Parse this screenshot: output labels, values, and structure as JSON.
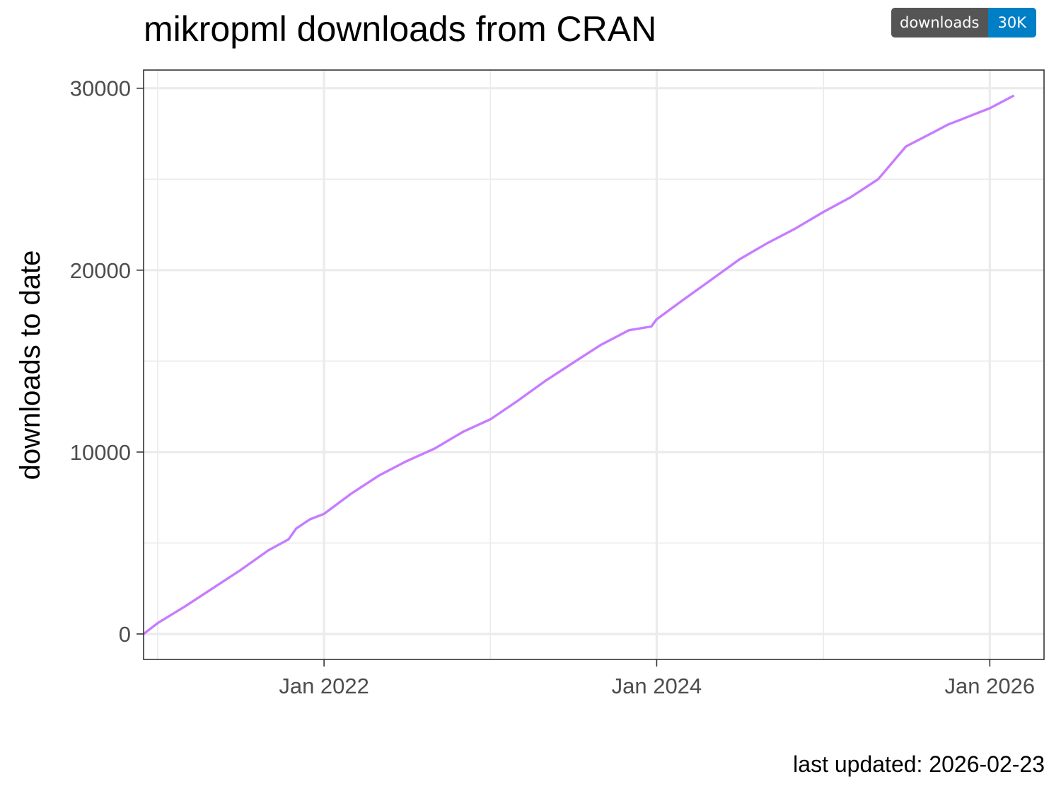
{
  "header": {
    "title": "mikropml downloads from CRAN",
    "badge": {
      "label": "downloads",
      "value": "30K",
      "label_color": "#555555",
      "value_color": "#007ec6"
    }
  },
  "footer": {
    "text": "last updated: 2026-02-23"
  },
  "chart_data": {
    "type": "line",
    "title": "mikropml downloads from CRAN",
    "xlabel": "",
    "ylabel": "downloads to date",
    "x_type": "date",
    "xlim": [
      "2020-12-01",
      "2026-04-30"
    ],
    "ylim": [
      -1400,
      31000
    ],
    "x_ticks": [
      {
        "date": "2022-01-01",
        "label": "Jan 2022"
      },
      {
        "date": "2024-01-01",
        "label": "Jan 2024"
      },
      {
        "date": "2026-01-01",
        "label": "Jan 2026"
      }
    ],
    "x_minor_ticks": [
      "2021-01-01",
      "2023-01-01",
      "2025-01-01"
    ],
    "y_ticks": [
      0,
      10000,
      20000,
      30000
    ],
    "y_minor_ticks": [
      5000,
      15000,
      25000
    ],
    "grid": true,
    "line_color": "#c77cff",
    "series": [
      {
        "name": "",
        "x": [
          "2020-12-01",
          "2021-01-01",
          "2021-03-01",
          "2021-05-01",
          "2021-07-01",
          "2021-09-01",
          "2021-10-15",
          "2021-11-01",
          "2021-12-01",
          "2022-01-01",
          "2022-03-01",
          "2022-05-01",
          "2022-07-01",
          "2022-09-01",
          "2022-11-01",
          "2023-01-01",
          "2023-03-01",
          "2023-05-01",
          "2023-07-01",
          "2023-09-01",
          "2023-11-01",
          "2023-12-20",
          "2024-01-01",
          "2024-03-01",
          "2024-05-01",
          "2024-07-01",
          "2024-09-01",
          "2024-11-01",
          "2025-01-01",
          "2025-03-01",
          "2025-05-01",
          "2025-07-01",
          "2025-09-01",
          "2025-10-01",
          "2025-11-01",
          "2025-12-01",
          "2026-01-01",
          "2026-02-23"
        ],
        "values": [
          0,
          600,
          1500,
          2500,
          3500,
          4600,
          5200,
          5800,
          6300,
          6600,
          7700,
          8700,
          9500,
          10200,
          11100,
          11800,
          12800,
          13900,
          14900,
          15900,
          16700,
          16900,
          17300,
          18400,
          19500,
          20600,
          21500,
          22300,
          23200,
          24000,
          25000,
          26800,
          27600,
          28000,
          28300,
          28600,
          28900,
          29600
        ]
      }
    ]
  }
}
